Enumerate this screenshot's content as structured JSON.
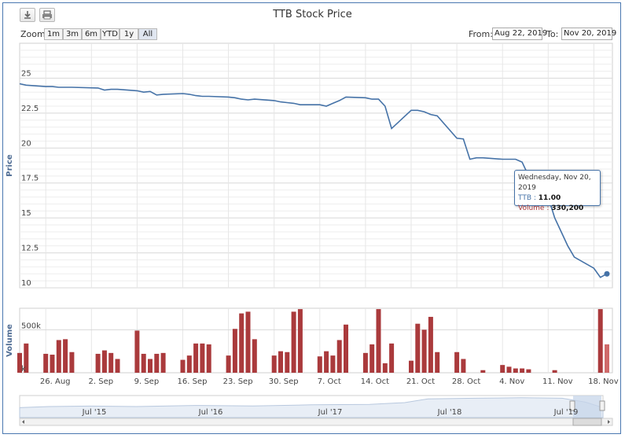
{
  "title": "TTB Stock Price",
  "toolbar": {
    "download_icon": "download-icon",
    "print_icon": "print-icon"
  },
  "zoom": {
    "label": "Zoom",
    "buttons": [
      "1m",
      "3m",
      "6m",
      "YTD",
      "1y",
      "All"
    ]
  },
  "range": {
    "from_label": "From:",
    "from_value": "Aug 22, 2019",
    "to_label": "To:",
    "to_value": "Nov 20, 2019"
  },
  "tooltip": {
    "date": "Wednesday, Nov 20, 2019",
    "series_label": "TTB",
    "series_value": "11.00",
    "volume_label": "Volume",
    "volume_value": "330,200"
  },
  "colors": {
    "price_line": "#4572a7",
    "volume_bar": "#aa3a3c",
    "grid": "#d8d8d8",
    "navigator": "#c7d6ea"
  },
  "chart_data": [
    {
      "type": "line",
      "title": "TTB Stock Price",
      "ylabel": "Price",
      "ylim": [
        10,
        27.5
      ],
      "yticks": [
        "10",
        "12.5",
        "15",
        "17.5",
        "20",
        "22.5",
        "25"
      ],
      "xticks": [
        "26. Aug",
        "2. Sep",
        "9. Sep",
        "16. Sep",
        "23. Sep",
        "30. Sep",
        "7. Oct",
        "14. Oct",
        "21. Oct",
        "28. Oct",
        "4. Nov",
        "11. Nov",
        "18. Nov"
      ],
      "series": [
        {
          "name": "TTB",
          "x": [
            "2019-08-22",
            "2019-08-23",
            "2019-08-26",
            "2019-08-27",
            "2019-08-28",
            "2019-08-29",
            "2019-08-30",
            "2019-09-03",
            "2019-09-04",
            "2019-09-05",
            "2019-09-06",
            "2019-09-09",
            "2019-09-10",
            "2019-09-11",
            "2019-09-12",
            "2019-09-13",
            "2019-09-16",
            "2019-09-17",
            "2019-09-18",
            "2019-09-19",
            "2019-09-20",
            "2019-09-23",
            "2019-09-24",
            "2019-09-25",
            "2019-09-26",
            "2019-09-27",
            "2019-09-30",
            "2019-10-01",
            "2019-10-02",
            "2019-10-03",
            "2019-10-04",
            "2019-10-07",
            "2019-10-08",
            "2019-10-09",
            "2019-10-10",
            "2019-10-11",
            "2019-10-14",
            "2019-10-15",
            "2019-10-16",
            "2019-10-17",
            "2019-10-18",
            "2019-10-21",
            "2019-10-22",
            "2019-10-23",
            "2019-10-24",
            "2019-10-25",
            "2019-10-28",
            "2019-10-29",
            "2019-10-30",
            "2019-10-31",
            "2019-11-01",
            "2019-11-04",
            "2019-11-05",
            "2019-11-06",
            "2019-11-07",
            "2019-11-08",
            "2019-11-11",
            "2019-11-12",
            "2019-11-13",
            "2019-11-14",
            "2019-11-15",
            "2019-11-18",
            "2019-11-19",
            "2019-11-20"
          ],
          "values": [
            24.6,
            24.5,
            24.4,
            24.4,
            24.35,
            24.35,
            24.35,
            24.3,
            24.15,
            24.2,
            24.2,
            24.1,
            24.0,
            24.05,
            23.8,
            23.85,
            23.9,
            23.85,
            23.75,
            23.7,
            23.7,
            23.65,
            23.6,
            23.5,
            23.45,
            23.5,
            23.4,
            23.3,
            23.25,
            23.2,
            23.1,
            23.1,
            23.0,
            23.2,
            23.4,
            23.65,
            23.6,
            23.5,
            23.5,
            23.0,
            21.4,
            22.7,
            22.7,
            22.6,
            22.4,
            22.3,
            20.7,
            20.65,
            19.2,
            19.3,
            19.3,
            19.2,
            19.2,
            19.2,
            19.0,
            18.0,
            16.5,
            15.0,
            14.0,
            13.0,
            12.2,
            11.4,
            10.75,
            11.0
          ]
        }
      ]
    },
    {
      "type": "bar",
      "ylabel": "Volume",
      "yticks": [
        "k",
        "500k"
      ],
      "ylim": [
        0,
        750000
      ],
      "series": [
        {
          "name": "Volume",
          "x": [
            "2019-08-22",
            "2019-08-23",
            "2019-08-26",
            "2019-08-27",
            "2019-08-28",
            "2019-08-29",
            "2019-08-30",
            "2019-09-03",
            "2019-09-04",
            "2019-09-05",
            "2019-09-06",
            "2019-09-09",
            "2019-09-10",
            "2019-09-11",
            "2019-09-12",
            "2019-09-13",
            "2019-09-16",
            "2019-09-17",
            "2019-09-18",
            "2019-09-19",
            "2019-09-20",
            "2019-09-23",
            "2019-09-24",
            "2019-09-25",
            "2019-09-26",
            "2019-09-27",
            "2019-09-30",
            "2019-10-01",
            "2019-10-02",
            "2019-10-03",
            "2019-10-04",
            "2019-10-07",
            "2019-10-08",
            "2019-10-09",
            "2019-10-10",
            "2019-10-11",
            "2019-10-14",
            "2019-10-15",
            "2019-10-16",
            "2019-10-17",
            "2019-10-18",
            "2019-10-21",
            "2019-10-22",
            "2019-10-23",
            "2019-10-24",
            "2019-10-25",
            "2019-10-28",
            "2019-10-29",
            "2019-10-30",
            "2019-10-31",
            "2019-11-01",
            "2019-11-04",
            "2019-11-05",
            "2019-11-06",
            "2019-11-07",
            "2019-11-08",
            "2019-11-11",
            "2019-11-12",
            "2019-11-13",
            "2019-11-14",
            "2019-11-15",
            "2019-11-18",
            "2019-11-19",
            "2019-11-20"
          ],
          "values": [
            230000,
            340000,
            220000,
            210000,
            380000,
            390000,
            240000,
            220000,
            260000,
            230000,
            160000,
            490000,
            220000,
            160000,
            220000,
            230000,
            150000,
            200000,
            340000,
            340000,
            330000,
            200000,
            510000,
            690000,
            710000,
            390000,
            200000,
            250000,
            240000,
            710000,
            740000,
            190000,
            250000,
            200000,
            380000,
            560000,
            230000,
            330000,
            740000,
            110000,
            340000,
            140000,
            570000,
            500000,
            650000,
            240000,
            240000,
            160000,
            0,
            0,
            30000,
            90000,
            70000,
            50000,
            50000,
            40000,
            0,
            30000,
            0,
            0,
            0,
            0,
            740000,
            330200
          ]
        }
      ]
    },
    {
      "type": "area",
      "name": "navigator",
      "xticks": [
        "Jul '15",
        "Jul '16",
        "Jul '17",
        "Jul '18",
        "Jul '19"
      ]
    }
  ]
}
